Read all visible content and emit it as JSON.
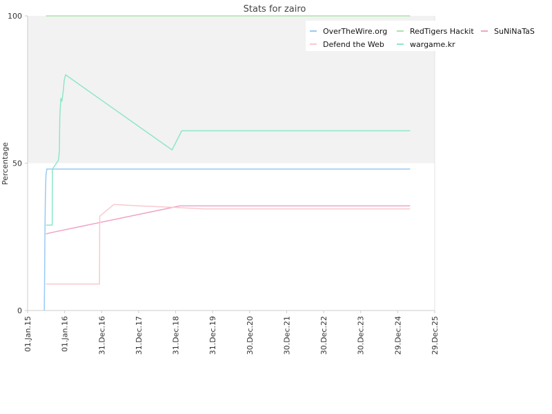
{
  "chart_data": {
    "type": "line",
    "title": "Stats for zairo",
    "xlabel": "",
    "ylabel": "Percentage",
    "ylim": [
      0,
      100
    ],
    "yticks": [
      "0",
      "50",
      "100"
    ],
    "yticks_values": [
      0,
      50,
      100
    ],
    "x_tick_labels": [
      "01.Jan.15",
      "01.Jan.16",
      "31.Dec.16",
      "31.Dec.17",
      "31.Dec.18",
      "31.Dec.19",
      "30.Dec.20",
      "30.Dec.21",
      "30.Dec.22",
      "30.Dec.23",
      "29.Dec.24",
      "29.Dec.25"
    ],
    "x_tick_dates": [
      "2015-01-01",
      "2016-01-01",
      "2016-12-31",
      "2017-12-31",
      "2018-12-31",
      "2019-12-31",
      "2020-12-30",
      "2021-12-30",
      "2022-12-30",
      "2023-12-30",
      "2024-12-29",
      "2025-12-29"
    ],
    "xlim": [
      "2015-01-01",
      "2025-12-29"
    ],
    "grid": false,
    "background_band": {
      "from": 50,
      "to": 100,
      "color": "#f2f2f2"
    },
    "legend_position": "top-right",
    "series": [
      {
        "name": "OverTheWire.org",
        "color": "#99c9f2",
        "points": [
          [
            "2015-06-15",
            0
          ],
          [
            "2015-06-17",
            7
          ],
          [
            "2015-06-20",
            23
          ],
          [
            "2015-06-25",
            38
          ],
          [
            "2015-07-01",
            46
          ],
          [
            "2015-07-10",
            48
          ],
          [
            "2025-05-01",
            48
          ]
        ]
      },
      {
        "name": "RedTigers Hackit",
        "color": "#a8e6a3",
        "points": [
          [
            "2015-07-01",
            100
          ],
          [
            "2025-05-01",
            100
          ]
        ]
      },
      {
        "name": "SuNiNaTaS",
        "color": "#f0a3c4",
        "points": [
          [
            "2015-07-01",
            26
          ],
          [
            "2015-09-01",
            26.5
          ],
          [
            "2019-02-10",
            35.5
          ],
          [
            "2025-05-01",
            35.5
          ]
        ]
      },
      {
        "name": "Defend the Web",
        "color": "#f7c9cf",
        "points": [
          [
            "2015-07-01",
            9
          ],
          [
            "2016-12-10",
            9
          ],
          [
            "2016-12-12",
            32
          ],
          [
            "2017-05-01",
            36
          ],
          [
            "2018-01-01",
            35.5
          ],
          [
            "2019-01-01",
            35
          ],
          [
            "2019-10-01",
            34.5
          ],
          [
            "2025-05-01",
            34.5
          ]
        ]
      },
      {
        "name": "wargame.kr",
        "color": "#8ee6c6",
        "points": [
          [
            "2015-07-01",
            29
          ],
          [
            "2015-09-01",
            29
          ],
          [
            "2015-09-03",
            48
          ],
          [
            "2015-11-01",
            51
          ],
          [
            "2015-11-10",
            54
          ],
          [
            "2015-11-15",
            66
          ],
          [
            "2015-11-25",
            72
          ],
          [
            "2015-12-05",
            71
          ],
          [
            "2015-12-20",
            75
          ],
          [
            "2015-12-28",
            78
          ],
          [
            "2016-01-10",
            80
          ],
          [
            "2018-11-25",
            54.5
          ],
          [
            "2019-03-01",
            61
          ],
          [
            "2025-05-01",
            61
          ]
        ]
      }
    ]
  }
}
